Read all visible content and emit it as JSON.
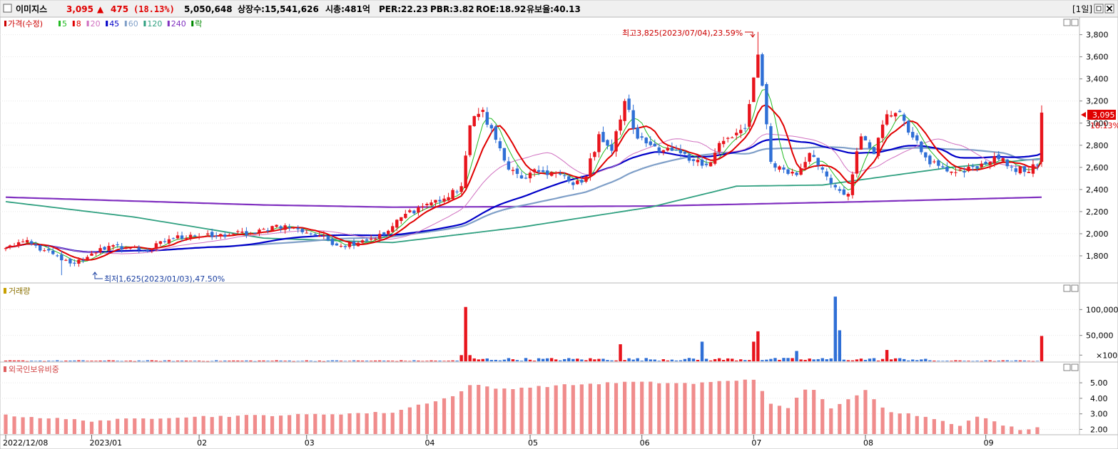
{
  "header": {
    "name": "이미지스",
    "price": "3,095",
    "arrow": "▲",
    "change": "475",
    "change_pct": "(18.13%)",
    "volume": "5,050,648",
    "listed": "상장수:15,541,626",
    "market_cap": "시총:481억",
    "per": "PER:22.23",
    "pbr": "PBR:3.82",
    "roe": "ROE:18.92",
    "reserve": "유보율:40.13",
    "period": "[1일]"
  },
  "colors": {
    "up": "#e8141c",
    "down": "#2f6fd6",
    "ma5": "#22bb22",
    "ma8": "#e00000",
    "ma20": "#d070c0",
    "ma45": "#0000c8",
    "ma60": "#7f9fc8",
    "ma120": "#30a080",
    "ma240": "#8030c0",
    "foreign": "#f08c8c"
  },
  "price_panel": {
    "legend": [
      {
        "label": "가격(수정)",
        "color": "#cc0000"
      },
      {
        "label": "5",
        "color": "#22bb22"
      },
      {
        "label": "8",
        "color": "#e00000"
      },
      {
        "label": "20",
        "color": "#d070c0"
      },
      {
        "label": "45",
        "color": "#0000c8"
      },
      {
        "label": "60",
        "color": "#7f9fc8"
      },
      {
        "label": "120",
        "color": "#30a080"
      },
      {
        "label": "240",
        "color": "#8030c0"
      },
      {
        "label": "락",
        "color": "#008800"
      }
    ],
    "y_ticks": [
      "3,800",
      "3,600",
      "3,400",
      "3,200",
      "3,000",
      "2,800",
      "2,600",
      "2,400",
      "2,200",
      "2,000",
      "1,800"
    ],
    "ylim": [
      1600,
      3920
    ],
    "annotation_high": "최고3,825(2023/07/04),23.59%",
    "annotation_low": "최저1,625(2023/01/03),47.50%",
    "current_price_label": "3,095",
    "current_pct_label": "18.13%"
  },
  "volume_panel": {
    "title": "거래량",
    "y_ticks": [
      "100,000",
      "50,000",
      "×100"
    ],
    "ylim": [
      0,
      128000
    ]
  },
  "foreign_panel": {
    "title": "외국인보유비중",
    "y_ticks": [
      "5.00",
      "4.00",
      "3.00",
      "2.00"
    ],
    "ylim": [
      1.7,
      5.6
    ]
  },
  "x_labels": [
    "2022/12/08",
    "2023/01",
    "02",
    "03",
    "04",
    "05",
    "06",
    "07",
    "08",
    "09"
  ],
  "chart_data": {
    "type": "candlestick",
    "title": "이미지스",
    "x": [
      "2022/12/08",
      "2023/01",
      "02",
      "03",
      "04",
      "05",
      "06",
      "07",
      "08",
      "09"
    ],
    "price_anchors": [
      {
        "i": 0,
        "close": 1870
      },
      {
        "i": 4,
        "close": 1930
      },
      {
        "i": 9,
        "close": 1850
      },
      {
        "i": 13,
        "close": 1760
      },
      {
        "i": 16,
        "close": 1730
      },
      {
        "i": 19,
        "close": 1790
      },
      {
        "i": 22,
        "close": 1870
      },
      {
        "i": 28,
        "close": 1880
      },
      {
        "i": 33,
        "close": 1850
      },
      {
        "i": 38,
        "close": 1950
      },
      {
        "i": 43,
        "close": 1990
      },
      {
        "i": 48,
        "close": 1970
      },
      {
        "i": 53,
        "close": 2000
      },
      {
        "i": 58,
        "close": 2000
      },
      {
        "i": 63,
        "close": 2080
      },
      {
        "i": 68,
        "close": 2040
      },
      {
        "i": 73,
        "close": 1980
      },
      {
        "i": 78,
        "close": 1890
      },
      {
        "i": 83,
        "close": 1940
      },
      {
        "i": 88,
        "close": 1990
      },
      {
        "i": 93,
        "close": 2180
      },
      {
        "i": 98,
        "close": 2270
      },
      {
        "i": 103,
        "close": 2330
      },
      {
        "i": 106,
        "close": 2430
      },
      {
        "i": 108,
        "close": 2980
      },
      {
        "i": 111,
        "close": 3120
      },
      {
        "i": 114,
        "close": 2850
      },
      {
        "i": 117,
        "close": 2580
      },
      {
        "i": 120,
        "close": 2500
      },
      {
        "i": 124,
        "close": 2560
      },
      {
        "i": 128,
        "close": 2550
      },
      {
        "i": 132,
        "close": 2440
      },
      {
        "i": 135,
        "close": 2520
      },
      {
        "i": 138,
        "close": 2900
      },
      {
        "i": 141,
        "close": 2750
      },
      {
        "i": 144,
        "close": 3200
      },
      {
        "i": 147,
        "close": 2860
      },
      {
        "i": 151,
        "close": 2790
      },
      {
        "i": 155,
        "close": 2750
      },
      {
        "i": 159,
        "close": 2660
      },
      {
        "i": 163,
        "close": 2620
      },
      {
        "i": 166,
        "close": 2820
      },
      {
        "i": 169,
        "close": 2870
      },
      {
        "i": 172,
        "close": 2950
      },
      {
        "i": 175,
        "close": 3620
      },
      {
        "i": 178,
        "close": 2650
      },
      {
        "i": 181,
        "close": 2580
      },
      {
        "i": 184,
        "close": 2530
      },
      {
        "i": 187,
        "close": 2730
      },
      {
        "i": 190,
        "close": 2580
      },
      {
        "i": 193,
        "close": 2420
      },
      {
        "i": 196,
        "close": 2360
      },
      {
        "i": 199,
        "close": 2880
      },
      {
        "i": 202,
        "close": 2720
      },
      {
        "i": 205,
        "close": 3080
      },
      {
        "i": 208,
        "close": 3100
      },
      {
        "i": 211,
        "close": 2870
      },
      {
        "i": 214,
        "close": 2690
      },
      {
        "i": 218,
        "close": 2600
      },
      {
        "i": 222,
        "close": 2580
      },
      {
        "i": 226,
        "close": 2590
      },
      {
        "i": 230,
        "close": 2700
      },
      {
        "i": 234,
        "close": 2600
      },
      {
        "i": 238,
        "close": 2560
      },
      {
        "i": 240,
        "close": 2620
      },
      {
        "i": 241,
        "close": 3095
      }
    ],
    "ma_levels": {
      "ma240": [
        {
          "i": 0,
          "v": 2330
        },
        {
          "i": 60,
          "v": 2260
        },
        {
          "i": 90,
          "v": 2240
        },
        {
          "i": 150,
          "v": 2250
        },
        {
          "i": 200,
          "v": 2290
        },
        {
          "i": 241,
          "v": 2330
        }
      ],
      "ma120": [
        {
          "i": 0,
          "v": 2290
        },
        {
          "i": 30,
          "v": 2150
        },
        {
          "i": 60,
          "v": 1960
        },
        {
          "i": 90,
          "v": 1920
        },
        {
          "i": 120,
          "v": 2060
        },
        {
          "i": 150,
          "v": 2240
        },
        {
          "i": 170,
          "v": 2430
        },
        {
          "i": 190,
          "v": 2440
        },
        {
          "i": 220,
          "v": 2600
        },
        {
          "i": 241,
          "v": 2680
        }
      ]
    },
    "volume_anchors": [
      {
        "i": 106,
        "v": 12000
      },
      {
        "i": 107,
        "v": 105000
      },
      {
        "i": 108,
        "v": 12000
      },
      {
        "i": 143,
        "v": 33000
      },
      {
        "i": 162,
        "v": 38000
      },
      {
        "i": 174,
        "v": 38000
      },
      {
        "i": 175,
        "v": 58000
      },
      {
        "i": 184,
        "v": 20000
      },
      {
        "i": 193,
        "v": 125000
      },
      {
        "i": 194,
        "v": 60000
      },
      {
        "i": 205,
        "v": 22000
      },
      {
        "i": 241,
        "v": 49000
      }
    ],
    "foreign_anchors": [
      {
        "i": 0,
        "v": 2.9
      },
      {
        "i": 20,
        "v": 2.55
      },
      {
        "i": 40,
        "v": 2.8
      },
      {
        "i": 70,
        "v": 2.95
      },
      {
        "i": 90,
        "v": 3.1
      },
      {
        "i": 95,
        "v": 3.5
      },
      {
        "i": 105,
        "v": 4.2
      },
      {
        "i": 108,
        "v": 4.9
      },
      {
        "i": 115,
        "v": 4.6
      },
      {
        "i": 130,
        "v": 4.85
      },
      {
        "i": 145,
        "v": 5.05
      },
      {
        "i": 160,
        "v": 4.95
      },
      {
        "i": 174,
        "v": 5.25
      },
      {
        "i": 178,
        "v": 3.6
      },
      {
        "i": 182,
        "v": 3.4
      },
      {
        "i": 187,
        "v": 4.9
      },
      {
        "i": 192,
        "v": 3.3
      },
      {
        "i": 200,
        "v": 4.5
      },
      {
        "i": 205,
        "v": 3.2
      },
      {
        "i": 210,
        "v": 3.0
      },
      {
        "i": 218,
        "v": 2.6
      },
      {
        "i": 222,
        "v": 2.2
      },
      {
        "i": 226,
        "v": 2.85
      },
      {
        "i": 232,
        "v": 2.3
      },
      {
        "i": 236,
        "v": 2.0
      },
      {
        "i": 241,
        "v": 2.15
      }
    ],
    "ylim": [
      1600,
      3920
    ]
  }
}
